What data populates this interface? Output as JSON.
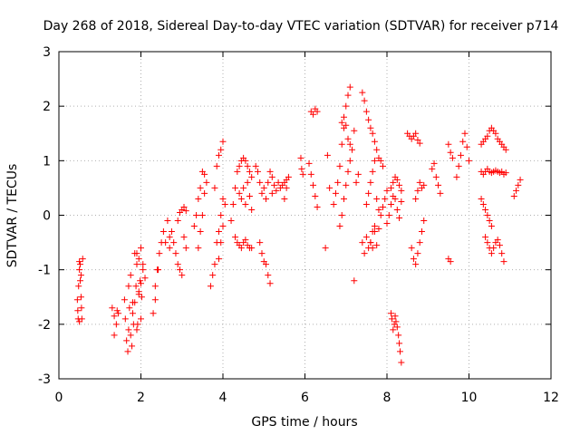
{
  "chart_data": {
    "type": "scatter",
    "title": "Day 268 of 2018, Sidereal Day-to-day VTEC variation (SDTVAR) for receiver p714",
    "xlabel": "GPS time / hours",
    "ylabel": "SDTVAR / TECUs",
    "xlim": [
      0,
      12
    ],
    "ylim": [
      -3,
      3
    ],
    "xticks": [
      0,
      2,
      4,
      6,
      8,
      10,
      12
    ],
    "yticks": [
      -3,
      -2,
      -1,
      0,
      1,
      2,
      3
    ],
    "grid": true,
    "marker": "+",
    "color": "#ff0000",
    "series": [
      {
        "name": "SDTVAR",
        "x": [
          0.45,
          0.46,
          0.47,
          0.48,
          0.5,
          0.52,
          0.54,
          0.55,
          0.5,
          0.52,
          0.54,
          0.56,
          0.58,
          0.5,
          1.3,
          1.35,
          1.4,
          1.45,
          1.35,
          1.42,
          1.6,
          1.62,
          1.65,
          1.68,
          1.7,
          1.72,
          1.75,
          1.78,
          1.8,
          1.82,
          1.85,
          1.88,
          1.9,
          1.92,
          1.95,
          1.98,
          2.0,
          2.02,
          2.05,
          1.7,
          1.75,
          1.8,
          1.85,
          1.9,
          1.95,
          2.0,
          1.9,
          1.95,
          2.0,
          2.05,
          2.1,
          2.3,
          2.35,
          2.4,
          2.45,
          2.5,
          2.35,
          2.42,
          2.55,
          2.6,
          2.65,
          2.7,
          2.7,
          2.75,
          2.8,
          2.85,
          2.9,
          2.95,
          3.0,
          3.05,
          3.1,
          2.9,
          2.95,
          3.0,
          3.05,
          3.1,
          3.3,
          3.35,
          3.4,
          3.45,
          3.5,
          3.55,
          3.4,
          3.45,
          3.5,
          3.55,
          3.6,
          3.7,
          3.75,
          3.8,
          3.85,
          3.9,
          3.95,
          4.0,
          3.8,
          3.85,
          3.9,
          3.95,
          4.0,
          3.9,
          3.95,
          4.0,
          4.05,
          4.2,
          4.25,
          4.3,
          4.35,
          4.4,
          4.45,
          4.5,
          4.55,
          4.6,
          4.65,
          4.7,
          4.3,
          4.35,
          4.4,
          4.45,
          4.5,
          4.55,
          4.6,
          4.65,
          4.7,
          4.4,
          4.45,
          4.5,
          4.55,
          4.6,
          4.65,
          4.7,
          4.8,
          4.85,
          4.9,
          4.95,
          5.0,
          5.05,
          5.1,
          5.15,
          5.2,
          4.9,
          4.95,
          5.0,
          5.05,
          5.1,
          5.15,
          5.2,
          5.25,
          5.3,
          5.35,
          5.4,
          5.45,
          5.5,
          5.55,
          5.5,
          5.55,
          5.6,
          5.9,
          5.92,
          5.95,
          6.1,
          6.15,
          6.2,
          6.25,
          6.3,
          6.15,
          6.2,
          6.25,
          6.3,
          6.5,
          6.55,
          6.6,
          6.7,
          6.75,
          6.8,
          6.85,
          6.9,
          6.95,
          7.0,
          7.05,
          7.1,
          6.85,
          6.9,
          6.95,
          7.0,
          7.05,
          7.1,
          7.15,
          7.2,
          6.9,
          6.95,
          7.0,
          7.05,
          7.1,
          7.2,
          7.25,
          7.3,
          7.4,
          7.45,
          7.5,
          7.55,
          7.6,
          7.65,
          7.7,
          7.75,
          7.8,
          7.85,
          7.9,
          7.4,
          7.45,
          7.5,
          7.55,
          7.6,
          7.65,
          7.7,
          7.5,
          7.55,
          7.6,
          7.65,
          7.7,
          7.75,
          7.8,
          7.85,
          7.6,
          7.65,
          7.7,
          7.75,
          7.8,
          7.9,
          7.95,
          8.0,
          8.1,
          8.12,
          8.15,
          8.18,
          8.2,
          8.22,
          8.25,
          8.28,
          8.3,
          8.32,
          8.35,
          8.1,
          8.15,
          8.2,
          8.25,
          8.3,
          8.35,
          8.0,
          8.05,
          8.1,
          8.15,
          8.2,
          8.25,
          8.3,
          8.35,
          8.5,
          8.55,
          8.6,
          8.65,
          8.7,
          8.75,
          8.8,
          8.6,
          8.65,
          8.7,
          8.75,
          8.8,
          8.85,
          8.9,
          8.7,
          8.75,
          8.8,
          8.85,
          8.9,
          9.1,
          9.15,
          9.2,
          9.25,
          9.3,
          9.5,
          9.55,
          9.6,
          9.5,
          9.55,
          9.7,
          9.75,
          9.8,
          9.85,
          9.9,
          9.95,
          10.0,
          10.3,
          10.35,
          10.4,
          10.45,
          10.5,
          10.55,
          10.6,
          10.65,
          10.7,
          10.75,
          10.8,
          10.85,
          10.9,
          10.3,
          10.35,
          10.4,
          10.45,
          10.5,
          10.55,
          10.6,
          10.65,
          10.7,
          10.75,
          10.8,
          10.85,
          10.9,
          10.3,
          10.35,
          10.4,
          10.45,
          10.5,
          10.55,
          10.4,
          10.45,
          10.5,
          10.55,
          10.6,
          10.65,
          10.7,
          10.75,
          10.8,
          10.85,
          11.1,
          11.15,
          11.2,
          11.25
        ],
        "y": [
          -1.55,
          -1.75,
          -1.9,
          -1.3,
          -1.0,
          -1.2,
          -1.5,
          -1.7,
          -0.85,
          -0.9,
          -1.1,
          -1.9,
          -0.8,
          -1.95,
          -1.7,
          -1.85,
          -2.0,
          -1.8,
          -2.2,
          -1.75,
          -1.55,
          -1.9,
          -2.3,
          -2.5,
          -2.1,
          -1.7,
          -2.2,
          -2.4,
          -1.8,
          -2.0,
          -1.6,
          -1.3,
          -2.1,
          -2.0,
          -1.4,
          -1.2,
          -1.9,
          -1.5,
          -1.0,
          -1.3,
          -1.1,
          -1.6,
          -0.7,
          -0.9,
          -1.45,
          -1.25,
          -0.7,
          -0.8,
          -0.6,
          -0.9,
          -1.15,
          -1.8,
          -1.3,
          -1.0,
          -0.7,
          -0.5,
          -1.55,
          -1.0,
          -0.3,
          -0.5,
          -0.1,
          -0.6,
          -0.4,
          -0.3,
          -0.5,
          -0.7,
          -0.9,
          -1.0,
          -1.1,
          -0.4,
          -0.6,
          -0.1,
          0.05,
          0.1,
          0.15,
          0.08,
          -0.2,
          0.0,
          0.3,
          0.5,
          0.8,
          0.75,
          -0.6,
          -0.3,
          0.0,
          0.4,
          0.6,
          -1.3,
          -1.1,
          -0.9,
          -0.5,
          -0.3,
          0.0,
          0.3,
          0.5,
          0.9,
          1.1,
          1.2,
          1.35,
          -0.8,
          -0.5,
          -0.2,
          0.2,
          -0.1,
          0.2,
          0.5,
          0.8,
          0.9,
          1.0,
          1.05,
          1.0,
          0.9,
          0.8,
          0.7,
          -0.4,
          -0.5,
          -0.55,
          -0.6,
          -0.5,
          -0.45,
          -0.55,
          -0.6,
          -0.6,
          0.4,
          0.3,
          0.5,
          0.2,
          0.6,
          0.35,
          0.1,
          0.9,
          0.8,
          0.6,
          0.4,
          0.5,
          0.3,
          0.6,
          0.8,
          0.4,
          -0.5,
          -0.7,
          -0.85,
          -0.9,
          -1.1,
          -1.25,
          0.7,
          0.55,
          0.45,
          0.6,
          0.5,
          0.55,
          0.6,
          0.65,
          0.3,
          0.5,
          0.7,
          1.05,
          0.85,
          0.75,
          0.95,
          0.75,
          0.55,
          0.35,
          0.15,
          1.9,
          1.85,
          1.95,
          1.9,
          -0.6,
          1.1,
          0.5,
          0.2,
          0.4,
          0.6,
          0.9,
          1.3,
          1.6,
          2.0,
          2.2,
          2.35,
          -0.2,
          0.0,
          0.3,
          0.55,
          0.8,
          1.0,
          1.2,
          1.55,
          1.7,
          1.8,
          1.65,
          1.4,
          1.3,
          -1.2,
          0.6,
          0.75,
          2.25,
          2.1,
          1.9,
          1.75,
          1.6,
          1.5,
          1.35,
          1.2,
          1.05,
          1.0,
          0.9,
          -0.5,
          -0.7,
          -0.4,
          -0.6,
          -0.5,
          -0.3,
          -0.2,
          0.2,
          0.4,
          0.6,
          0.8,
          1.0,
          0.3,
          0.1,
          0.0,
          -0.5,
          -0.6,
          -0.3,
          -0.55,
          -0.25,
          0.15,
          0.3,
          0.45,
          -1.8,
          -1.9,
          -2.1,
          -2.0,
          -1.85,
          -1.95,
          -2.05,
          -2.2,
          -2.35,
          -2.5,
          -2.7,
          0.5,
          0.6,
          0.7,
          0.65,
          0.55,
          0.45,
          -0.15,
          0.0,
          0.2,
          0.35,
          0.3,
          0.1,
          -0.05,
          0.25,
          1.5,
          1.45,
          1.4,
          1.45,
          1.5,
          1.38,
          1.32,
          -0.6,
          -0.8,
          -0.9,
          -0.7,
          -0.5,
          -0.3,
          -0.1,
          0.3,
          0.45,
          0.6,
          0.5,
          0.55,
          0.85,
          0.95,
          0.7,
          0.55,
          0.4,
          1.3,
          1.15,
          1.05,
          -0.8,
          -0.85,
          0.7,
          0.9,
          1.1,
          1.35,
          1.5,
          1.25,
          1.0,
          1.3,
          1.35,
          1.4,
          1.45,
          1.55,
          1.6,
          1.55,
          1.5,
          1.4,
          1.35,
          1.3,
          1.25,
          1.2,
          0.8,
          0.75,
          0.8,
          0.85,
          0.8,
          0.78,
          0.8,
          0.82,
          0.8,
          0.78,
          0.8,
          0.75,
          0.78,
          0.3,
          0.2,
          0.1,
          0.0,
          -0.1,
          -0.2,
          -0.4,
          -0.5,
          -0.6,
          -0.7,
          -0.6,
          -0.5,
          -0.45,
          -0.55,
          -0.7,
          -0.85,
          0.35,
          0.45,
          0.55,
          0.65
        ]
      }
    ]
  }
}
